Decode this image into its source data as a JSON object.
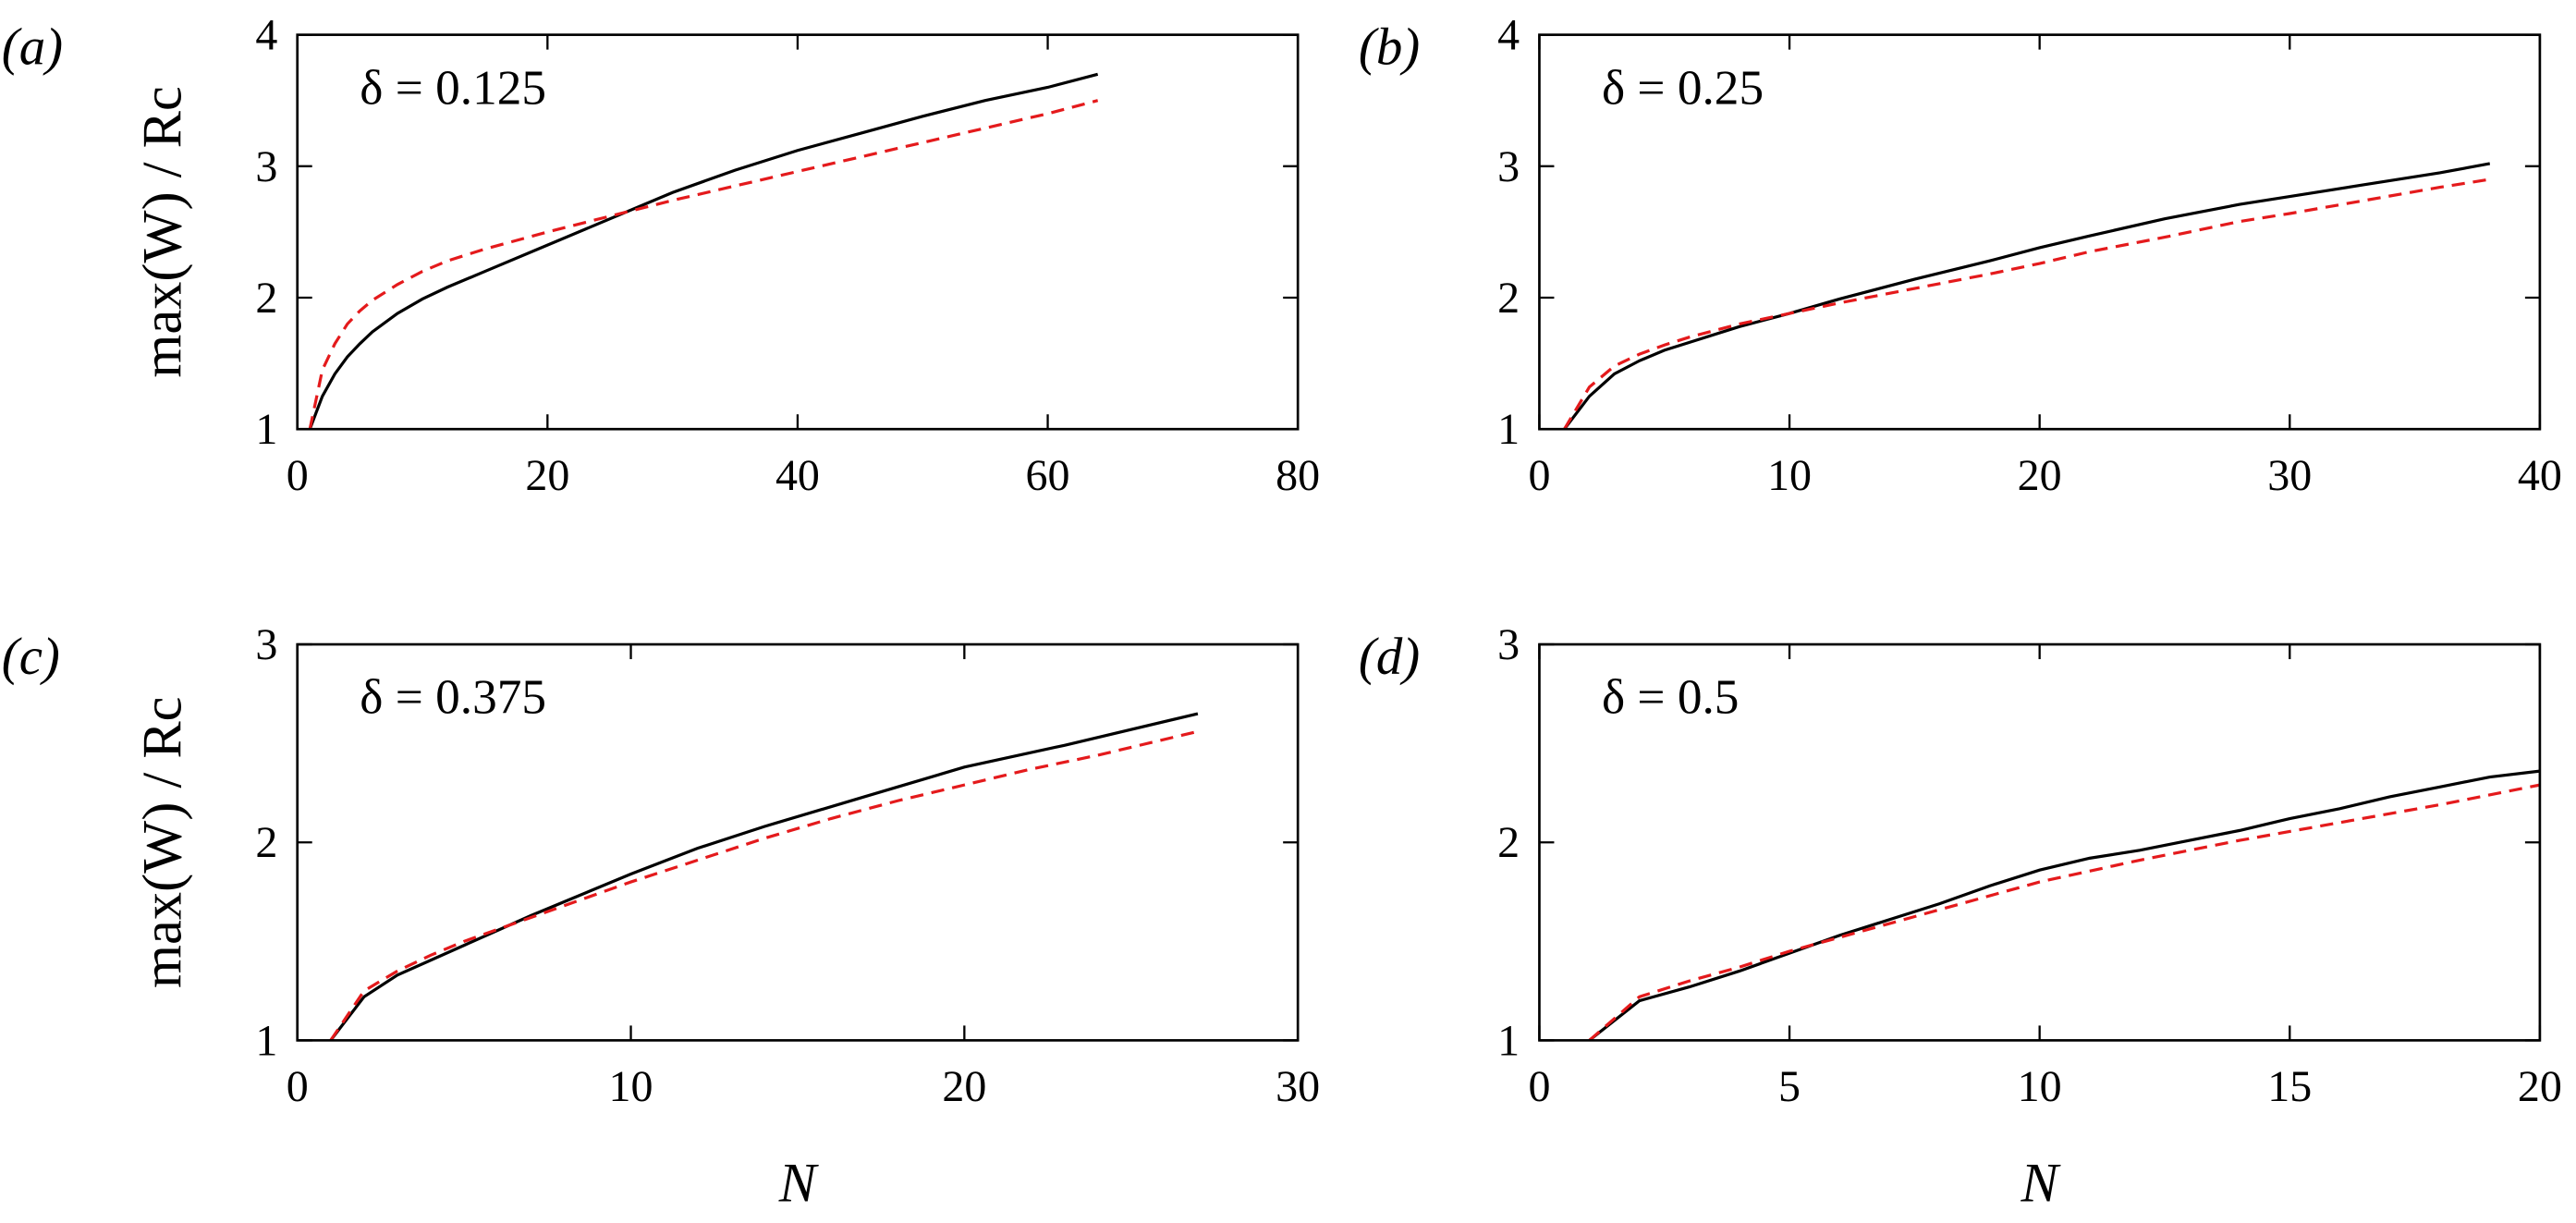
{
  "chart_data": [
    {
      "type": "line",
      "panel_label": "(a)",
      "annotation": "δ = 0.125",
      "ylabel": "max(W) / Rc",
      "xlim": [
        0,
        80
      ],
      "ylim": [
        1,
        4
      ],
      "xticks": [
        0,
        20,
        40,
        60,
        80
      ],
      "yticks": [
        1,
        2,
        3,
        4
      ],
      "series": [
        {
          "color": "#000000",
          "linestyle": "solid",
          "x": [
            1,
            2,
            3,
            4,
            5,
            6,
            8,
            10,
            12,
            15,
            20,
            25,
            30,
            35,
            40,
            45,
            50,
            55,
            60,
            64
          ],
          "values": [
            1.0,
            1.25,
            1.42,
            1.55,
            1.65,
            1.74,
            1.88,
            1.99,
            2.08,
            2.2,
            2.4,
            2.6,
            2.8,
            2.97,
            3.12,
            3.25,
            3.38,
            3.5,
            3.6,
            3.7
          ]
        },
        {
          "color": "#e41a1c",
          "linestyle": "dashed",
          "x": [
            1,
            2,
            3,
            4,
            5,
            6,
            8,
            10,
            12,
            15,
            20,
            25,
            30,
            35,
            40,
            45,
            50,
            55,
            60,
            64
          ],
          "values": [
            1.0,
            1.45,
            1.65,
            1.8,
            1.9,
            1.98,
            2.1,
            2.2,
            2.28,
            2.37,
            2.5,
            2.62,
            2.74,
            2.85,
            2.96,
            3.07,
            3.18,
            3.29,
            3.4,
            3.5
          ]
        }
      ]
    },
    {
      "type": "line",
      "panel_label": "(b)",
      "annotation": "δ = 0.25",
      "xlim": [
        0,
        40
      ],
      "ylim": [
        1,
        4
      ],
      "xticks": [
        0,
        10,
        20,
        30,
        40
      ],
      "yticks": [
        1,
        2,
        3,
        4
      ],
      "series": [
        {
          "color": "#000000",
          "linestyle": "solid",
          "x": [
            1,
            2,
            3,
            4,
            5,
            6,
            8,
            10,
            12,
            15,
            18,
            20,
            22,
            25,
            28,
            30,
            33,
            36,
            38
          ],
          "values": [
            1.0,
            1.25,
            1.42,
            1.52,
            1.6,
            1.66,
            1.78,
            1.88,
            1.99,
            2.14,
            2.28,
            2.38,
            2.47,
            2.6,
            2.71,
            2.77,
            2.86,
            2.95,
            3.02
          ]
        },
        {
          "color": "#e41a1c",
          "linestyle": "dashed",
          "x": [
            1,
            2,
            3,
            4,
            5,
            6,
            8,
            10,
            12,
            15,
            18,
            20,
            22,
            25,
            28,
            30,
            33,
            36,
            38
          ],
          "values": [
            1.0,
            1.32,
            1.48,
            1.57,
            1.64,
            1.7,
            1.8,
            1.88,
            1.96,
            2.07,
            2.18,
            2.26,
            2.35,
            2.46,
            2.58,
            2.64,
            2.74,
            2.84,
            2.9
          ]
        }
      ]
    },
    {
      "type": "line",
      "panel_label": "(c)",
      "annotation": "δ = 0.375",
      "ylabel": "max(W) / Rc",
      "xlabel": "N",
      "xlim": [
        0,
        30
      ],
      "ylim": [
        1,
        3
      ],
      "xticks": [
        0,
        10,
        20,
        30
      ],
      "yticks": [
        1,
        2,
        3
      ],
      "series": [
        {
          "color": "#000000",
          "linestyle": "solid",
          "x": [
            1,
            2,
            3,
            5,
            7,
            10,
            12,
            14,
            17,
            20,
            23,
            27
          ],
          "values": [
            1.0,
            1.22,
            1.33,
            1.48,
            1.63,
            1.84,
            1.97,
            2.08,
            2.23,
            2.38,
            2.49,
            2.65
          ]
        },
        {
          "color": "#e41a1c",
          "linestyle": "dashed",
          "x": [
            1,
            2,
            3,
            4,
            5,
            6,
            8,
            10,
            12,
            14,
            16,
            18,
            20,
            22,
            24,
            27
          ],
          "values": [
            1.0,
            1.25,
            1.35,
            1.43,
            1.5,
            1.56,
            1.68,
            1.8,
            1.91,
            2.02,
            2.12,
            2.21,
            2.29,
            2.37,
            2.44,
            2.56
          ]
        }
      ]
    },
    {
      "type": "line",
      "panel_label": "(d)",
      "annotation": "δ = 0.5",
      "xlabel": "N",
      "xlim": [
        0,
        20
      ],
      "ylim": [
        1,
        3
      ],
      "xticks": [
        0,
        5,
        10,
        15,
        20
      ],
      "yticks": [
        1,
        2,
        3
      ],
      "series": [
        {
          "color": "#000000",
          "linestyle": "solid",
          "x": [
            1,
            2,
            3,
            4,
            5,
            6,
            7,
            8,
            9,
            10,
            11,
            12,
            13,
            14,
            15,
            16,
            17,
            18,
            19,
            20
          ],
          "values": [
            1.0,
            1.2,
            1.27,
            1.35,
            1.44,
            1.53,
            1.61,
            1.69,
            1.78,
            1.86,
            1.92,
            1.96,
            2.01,
            2.06,
            2.12,
            2.17,
            2.23,
            2.28,
            2.33,
            2.36
          ]
        },
        {
          "color": "#e41a1c",
          "linestyle": "dashed",
          "x": [
            1,
            2,
            3,
            4,
            5,
            6,
            7,
            8,
            9,
            10,
            12,
            14,
            16,
            18,
            20
          ],
          "values": [
            1.0,
            1.22,
            1.3,
            1.37,
            1.45,
            1.52,
            1.59,
            1.66,
            1.73,
            1.8,
            1.91,
            2.01,
            2.1,
            2.19,
            2.29
          ]
        }
      ]
    }
  ]
}
